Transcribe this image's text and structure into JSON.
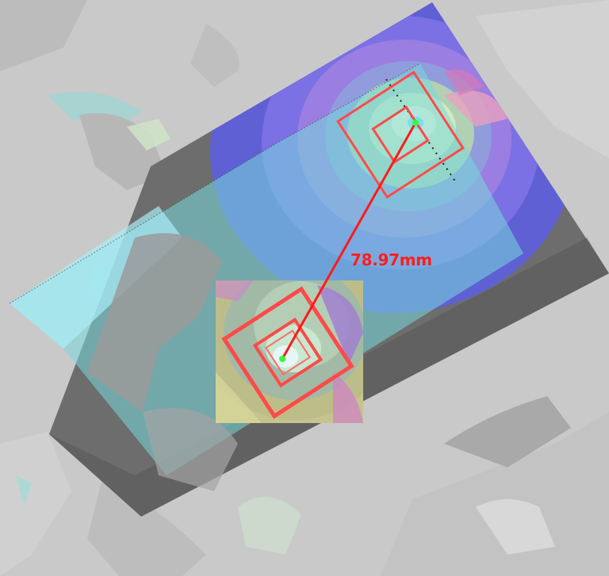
{
  "measurement": {
    "distance_label": "78.97mm",
    "line_color": "#ff1a1a",
    "marker_color": "#ff4a4a",
    "endpoint_color": "#33ff33"
  },
  "layers": {
    "background_color": "#c9c9c9",
    "panel_color": "#6d6d6d",
    "overlay_color": "#79d8dc",
    "heatmap_colors": [
      "#5e5ee0",
      "#9a7fe0",
      "#8e9ad8",
      "#b6d8b0",
      "#d8eec0",
      "#fffde0"
    ]
  }
}
